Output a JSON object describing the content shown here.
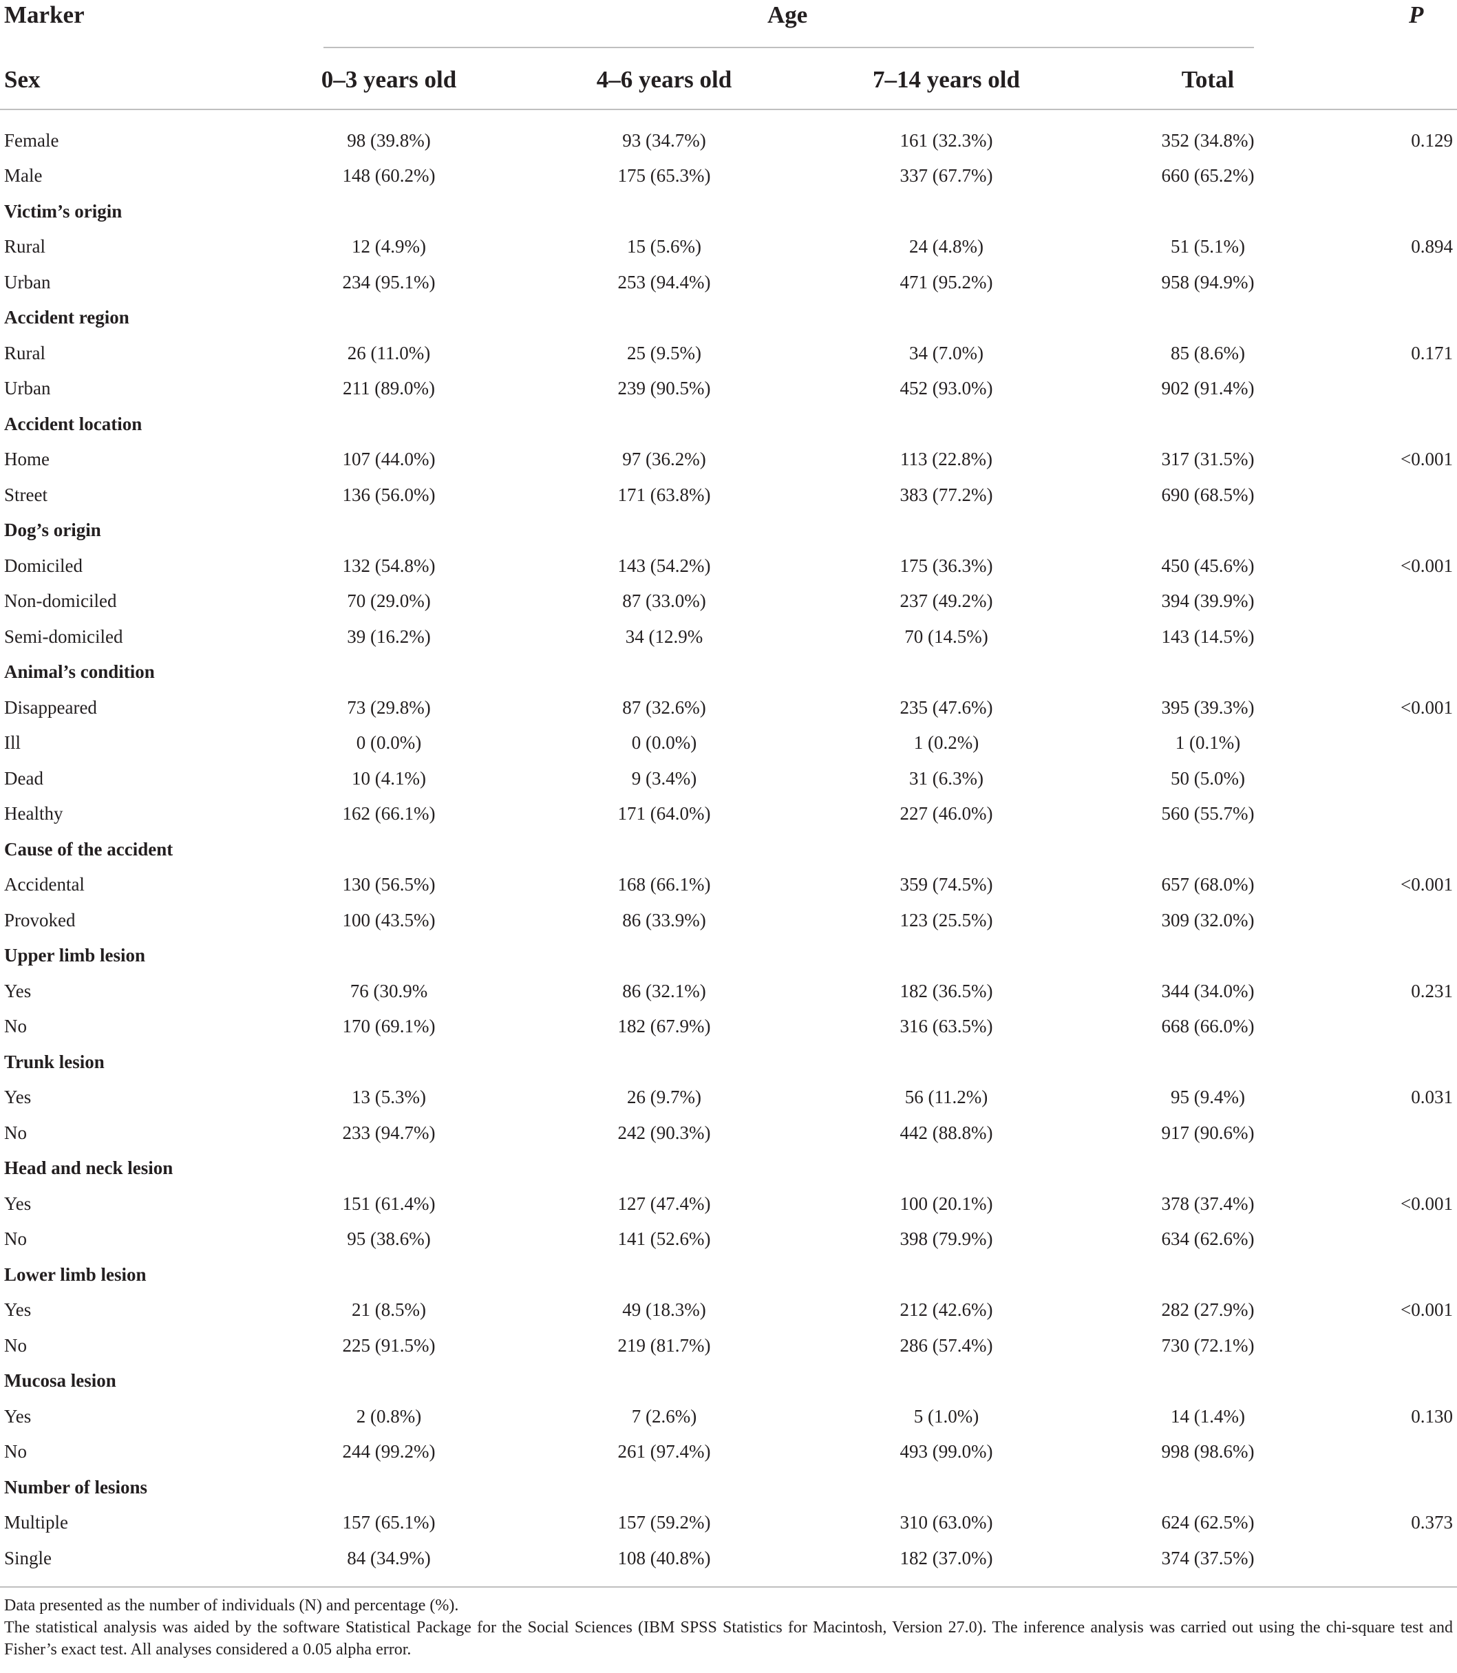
{
  "header": {
    "marker": "Marker",
    "age": "Age",
    "p": "P",
    "sex": "Sex",
    "columns": [
      "0–3 years old",
      "4–6 years old",
      "7–14 years old",
      "Total"
    ]
  },
  "rows": [
    {
      "type": "data",
      "label": "Female",
      "values": [
        "98 (39.8%)",
        "93 (34.7%)",
        "161 (32.3%)",
        "352 (34.8%)"
      ],
      "p": "0.129"
    },
    {
      "type": "data",
      "label": "Male",
      "values": [
        "148 (60.2%)",
        "175 (65.3%)",
        "337 (67.7%)",
        "660 (65.2%)"
      ],
      "p": ""
    },
    {
      "type": "group",
      "label": "Victim’s origin"
    },
    {
      "type": "data",
      "label": "Rural",
      "values": [
        "12 (4.9%)",
        "15 (5.6%)",
        "24 (4.8%)",
        "51 (5.1%)"
      ],
      "p": "0.894"
    },
    {
      "type": "data",
      "label": "Urban",
      "values": [
        "234 (95.1%)",
        "253 (94.4%)",
        "471 (95.2%)",
        "958 (94.9%)"
      ],
      "p": ""
    },
    {
      "type": "group",
      "label": "Accident region"
    },
    {
      "type": "data",
      "label": "Rural",
      "values": [
        "26 (11.0%)",
        "25 (9.5%)",
        "34 (7.0%)",
        "85 (8.6%)"
      ],
      "p": "0.171"
    },
    {
      "type": "data",
      "label": "Urban",
      "values": [
        "211 (89.0%)",
        "239 (90.5%)",
        "452 (93.0%)",
        "902 (91.4%)"
      ],
      "p": ""
    },
    {
      "type": "group",
      "label": "Accident location"
    },
    {
      "type": "data",
      "label": "Home",
      "values": [
        "107 (44.0%)",
        "97 (36.2%)",
        "113 (22.8%)",
        "317 (31.5%)"
      ],
      "p": "<0.001"
    },
    {
      "type": "data",
      "label": "Street",
      "values": [
        "136 (56.0%)",
        "171 (63.8%)",
        "383 (77.2%)",
        "690 (68.5%)"
      ],
      "p": ""
    },
    {
      "type": "group",
      "label": "Dog’s origin"
    },
    {
      "type": "data",
      "label": "Domiciled",
      "values": [
        "132 (54.8%)",
        "143 (54.2%)",
        "175 (36.3%)",
        "450 (45.6%)"
      ],
      "p": "<0.001"
    },
    {
      "type": "data",
      "label": "Non-domiciled",
      "values": [
        "70 (29.0%)",
        "87 (33.0%)",
        "237 (49.2%)",
        "394 (39.9%)"
      ],
      "p": ""
    },
    {
      "type": "data",
      "label": "Semi-domiciled",
      "values": [
        "39 (16.2%)",
        "34 (12.9%",
        "70 (14.5%)",
        "143 (14.5%)"
      ],
      "p": ""
    },
    {
      "type": "group",
      "label": "Animal’s condition"
    },
    {
      "type": "data",
      "label": "Disappeared",
      "values": [
        "73 (29.8%)",
        "87 (32.6%)",
        "235 (47.6%)",
        "395 (39.3%)"
      ],
      "p": "<0.001"
    },
    {
      "type": "data",
      "label": "Ill",
      "values": [
        "0 (0.0%)",
        "0 (0.0%)",
        "1 (0.2%)",
        "1 (0.1%)"
      ],
      "p": ""
    },
    {
      "type": "data",
      "label": "Dead",
      "values": [
        "10 (4.1%)",
        "9 (3.4%)",
        "31 (6.3%)",
        "50 (5.0%)"
      ],
      "p": ""
    },
    {
      "type": "data",
      "label": "Healthy",
      "values": [
        "162 (66.1%)",
        "171 (64.0%)",
        "227 (46.0%)",
        "560 (55.7%)"
      ],
      "p": ""
    },
    {
      "type": "group",
      "label": "Cause of the accident"
    },
    {
      "type": "data",
      "label": "Accidental",
      "values": [
        "130 (56.5%)",
        "168 (66.1%)",
        "359 (74.5%)",
        "657 (68.0%)"
      ],
      "p": "<0.001"
    },
    {
      "type": "data",
      "label": "Provoked",
      "values": [
        "100 (43.5%)",
        "86 (33.9%)",
        "123 (25.5%)",
        "309 (32.0%)"
      ],
      "p": ""
    },
    {
      "type": "group",
      "label": "Upper limb lesion"
    },
    {
      "type": "data",
      "label": "Yes",
      "values": [
        "76 (30.9%",
        "86 (32.1%)",
        "182 (36.5%)",
        "344 (34.0%)"
      ],
      "p": "0.231"
    },
    {
      "type": "data",
      "label": "No",
      "values": [
        "170 (69.1%)",
        "182 (67.9%)",
        "316 (63.5%)",
        "668 (66.0%)"
      ],
      "p": ""
    },
    {
      "type": "group",
      "label": "Trunk lesion"
    },
    {
      "type": "data",
      "label": "Yes",
      "values": [
        "13 (5.3%)",
        "26 (9.7%)",
        "56 (11.2%)",
        "95 (9.4%)"
      ],
      "p": "0.031"
    },
    {
      "type": "data",
      "label": "No",
      "values": [
        "233 (94.7%)",
        "242 (90.3%)",
        "442 (88.8%)",
        "917 (90.6%)"
      ],
      "p": ""
    },
    {
      "type": "group",
      "label": "Head and neck lesion"
    },
    {
      "type": "data",
      "label": "Yes",
      "values": [
        "151 (61.4%)",
        "127 (47.4%)",
        "100 (20.1%)",
        "378 (37.4%)"
      ],
      "p": "<0.001"
    },
    {
      "type": "data",
      "label": "No",
      "values": [
        "95 (38.6%)",
        "141 (52.6%)",
        "398 (79.9%)",
        "634 (62.6%)"
      ],
      "p": ""
    },
    {
      "type": "group",
      "label": "Lower limb lesion"
    },
    {
      "type": "data",
      "label": "Yes",
      "values": [
        "21 (8.5%)",
        "49 (18.3%)",
        "212 (42.6%)",
        "282 (27.9%)"
      ],
      "p": "<0.001"
    },
    {
      "type": "data",
      "label": "No",
      "values": [
        "225 (91.5%)",
        "219 (81.7%)",
        "286 (57.4%)",
        "730 (72.1%)"
      ],
      "p": ""
    },
    {
      "type": "group",
      "label": "Mucosa lesion"
    },
    {
      "type": "data",
      "label": "Yes",
      "values": [
        "2 (0.8%)",
        "7 (2.6%)",
        "5 (1.0%)",
        "14 (1.4%)"
      ],
      "p": "0.130"
    },
    {
      "type": "data",
      "label": "No",
      "values": [
        "244 (99.2%)",
        "261 (97.4%)",
        "493 (99.0%)",
        "998 (98.6%)"
      ],
      "p": ""
    },
    {
      "type": "group",
      "label": "Number of lesions"
    },
    {
      "type": "data",
      "label": "Multiple",
      "values": [
        "157 (65.1%)",
        "157 (59.2%)",
        "310 (63.0%)",
        "624 (62.5%)"
      ],
      "p": "0.373"
    },
    {
      "type": "data",
      "label": "Single",
      "values": [
        "84 (34.9%)",
        "108 (40.8%)",
        "182 (37.0%)",
        "374 (37.5%)"
      ],
      "p": ""
    }
  ],
  "notes": {
    "line1": "Data presented as the number of individuals (N) and percentage (%).",
    "line2": "The statistical analysis was aided by the software Statistical Package for the Social Sciences (IBM SPSS Statistics for Macintosh, Version 27.0). The inference analysis was carried out using the chi-square test and Fisher’s exact test. All analyses considered a 0.05 alpha error."
  }
}
